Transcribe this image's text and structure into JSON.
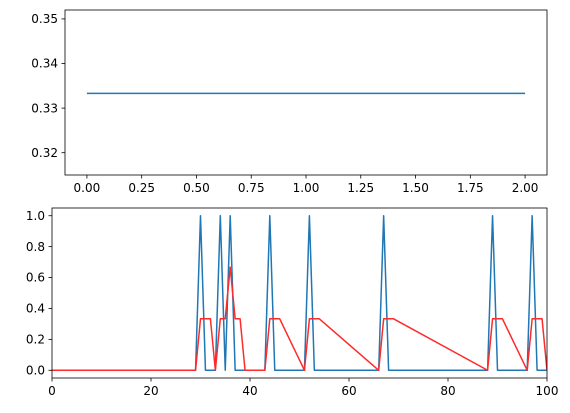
{
  "chart_data": [
    {
      "type": "line",
      "xlim": [
        -0.1,
        2.1
      ],
      "ylim": [
        0.315,
        0.352
      ],
      "xticks": [
        0.0,
        0.25,
        0.5,
        0.75,
        1.0,
        1.25,
        1.5,
        1.75,
        2.0
      ],
      "xtick_labels": [
        "0.00",
        "0.25",
        "0.50",
        "0.75",
        "1.00",
        "1.25",
        "1.50",
        "1.75",
        "2.00"
      ],
      "yticks": [
        0.32,
        0.33,
        0.34,
        0.35
      ],
      "ytick_labels": [
        "0.32",
        "0.33",
        "0.34",
        "0.35"
      ],
      "grid": false,
      "series": [
        {
          "color": "#1f77b4",
          "x": [
            0.0,
            2.0
          ],
          "y": [
            0.3333,
            0.3333
          ]
        }
      ]
    },
    {
      "type": "line",
      "xlim": [
        0,
        100
      ],
      "ylim": [
        -0.05,
        1.05
      ],
      "xticks": [
        0,
        20,
        40,
        60,
        80,
        100
      ],
      "xtick_labels": [
        "0",
        "20",
        "40",
        "60",
        "80",
        "100"
      ],
      "yticks": [
        0.0,
        0.2,
        0.4,
        0.6,
        0.8,
        1.0
      ],
      "ytick_labels": [
        "0.0",
        "0.2",
        "0.4",
        "0.6",
        "0.8",
        "1.0"
      ],
      "grid": false,
      "series": [
        {
          "color": "#1f77b4",
          "x": [
            0,
            29,
            30,
            31,
            33,
            34,
            35,
            36,
            37,
            43,
            44,
            45,
            51,
            52,
            53,
            66,
            67,
            68,
            88,
            89,
            90,
            96,
            97,
            98,
            100
          ],
          "y": [
            0,
            0,
            1,
            0,
            0,
            1,
            0,
            1,
            0,
            0,
            1,
            0,
            0,
            1,
            0,
            0,
            1,
            0,
            0,
            1,
            0,
            0,
            1,
            0,
            0
          ]
        },
        {
          "color": "#ff2a2a",
          "x": [
            0,
            29,
            30,
            31,
            32,
            33,
            34,
            35,
            36,
            37,
            38,
            39,
            43,
            44,
            45,
            46,
            51,
            52,
            53,
            54,
            66,
            67,
            68,
            69,
            88,
            89,
            90,
            91,
            96,
            97,
            98,
            99,
            100
          ],
          "y": [
            0,
            0,
            0.333,
            0.333,
            0.333,
            0,
            0.333,
            0.333,
            0.667,
            0.333,
            0.333,
            0,
            0,
            0.333,
            0.333,
            0.333,
            0,
            0.333,
            0.333,
            0.333,
            0,
            0.333,
            0.333,
            0.333,
            0,
            0.333,
            0.333,
            0.333,
            0,
            0.333,
            0.333,
            0.333,
            0
          ]
        }
      ]
    }
  ]
}
